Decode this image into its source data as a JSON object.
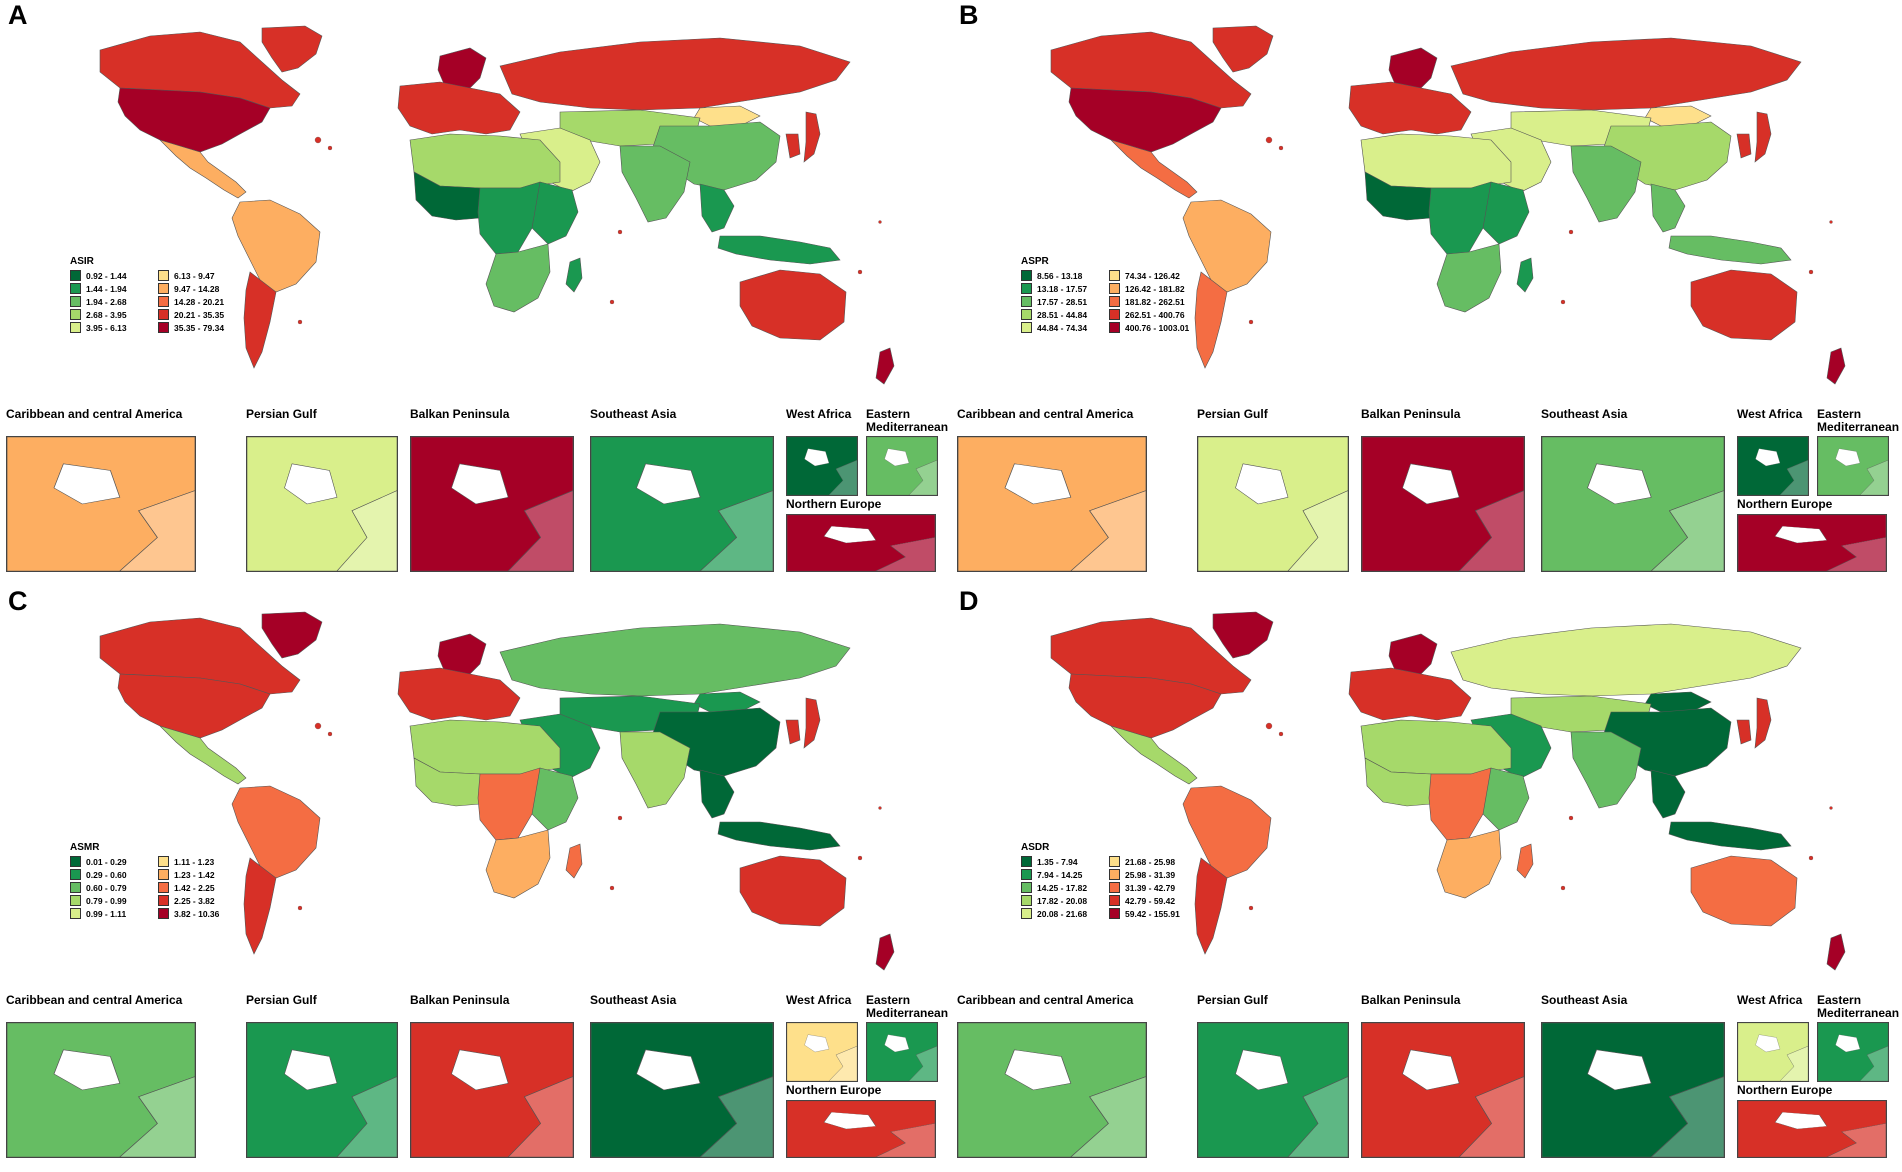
{
  "panels": [
    {
      "letter": "A",
      "legend_title": "ASIR",
      "legend": [
        "0.92 - 1.44",
        "1.44 - 1.94",
        "1.94 - 2.68",
        "2.68 - 3.95",
        "3.95 - 6.13",
        "6.13 - 9.47",
        "9.47 - 14.28",
        "14.28 - 20.21",
        "20.21 - 35.35",
        "35.35 - 79.34"
      ],
      "inset_colors": {
        "caribbean": "#fdae61",
        "persian": "#d9ef8b",
        "balkan": "#a50026",
        "seasia": "#1a9850",
        "westafrica": "#006837",
        "eastmed": "#66bd63",
        "northeu": "#a50026"
      },
      "region_colors": {
        "namerica": "#a50026",
        "canada": "#d73027",
        "greenland": "#d73027",
        "camerica": "#fdae61",
        "samerica": "#fdae61",
        "southcone": "#d73027",
        "europe": "#d73027",
        "scandinavia": "#a50026",
        "russia": "#d73027",
        "mideast": "#d9ef8b",
        "nafrica": "#a6d96a",
        "wafrica": "#006837",
        "cafrica": "#1a9850",
        "eafrica": "#1a9850",
        "safrica": "#66bd63",
        "madagascar": "#1a9850",
        "centralasia": "#a6d96a",
        "southasia": "#66bd63",
        "china": "#66bd63",
        "mongolia": "#fee08b",
        "seasia": "#1a9850",
        "japan": "#d73027",
        "korea": "#d73027",
        "indonesia": "#1a9850",
        "australia": "#d73027",
        "nz": "#a50026"
      }
    },
    {
      "letter": "B",
      "legend_title": "ASPR",
      "legend": [
        "8.56 - 13.18",
        "13.18 - 17.57",
        "17.57 - 28.51",
        "28.51 - 44.84",
        "44.84 - 74.34",
        "74.34 - 126.42",
        "126.42 - 181.82",
        "181.82 - 262.51",
        "262.51 - 400.76",
        "400.76 - 1003.01"
      ],
      "inset_colors": {
        "caribbean": "#fdae61",
        "persian": "#d9ef8b",
        "balkan": "#a50026",
        "seasia": "#66bd63",
        "westafrica": "#006837",
        "eastmed": "#66bd63",
        "northeu": "#a50026"
      },
      "region_colors": {
        "namerica": "#a50026",
        "canada": "#d73027",
        "greenland": "#d73027",
        "camerica": "#f46d43",
        "samerica": "#fdae61",
        "southcone": "#f46d43",
        "europe": "#d73027",
        "scandinavia": "#a50026",
        "russia": "#d73027",
        "mideast": "#d9ef8b",
        "nafrica": "#d9ef8b",
        "wafrica": "#006837",
        "cafrica": "#1a9850",
        "eafrica": "#1a9850",
        "safrica": "#66bd63",
        "madagascar": "#1a9850",
        "centralasia": "#d9ef8b",
        "southasia": "#66bd63",
        "china": "#a6d96a",
        "mongolia": "#fee08b",
        "seasia": "#66bd63",
        "japan": "#d73027",
        "korea": "#d73027",
        "indonesia": "#66bd63",
        "australia": "#d73027",
        "nz": "#a50026"
      }
    },
    {
      "letter": "C",
      "legend_title": "ASMR",
      "legend": [
        "0.01 - 0.29",
        "0.29 - 0.60",
        "0.60 - 0.79",
        "0.79 - 0.99",
        "0.99 - 1.11",
        "1.11 - 1.23",
        "1.23 - 1.42",
        "1.42 - 2.25",
        "2.25 - 3.82",
        "3.82 - 10.36"
      ],
      "inset_colors": {
        "caribbean": "#66bd63",
        "persian": "#1a9850",
        "balkan": "#d73027",
        "seasia": "#006837",
        "westafrica": "#fee08b",
        "eastmed": "#1a9850",
        "northeu": "#d73027"
      },
      "region_colors": {
        "namerica": "#d73027",
        "canada": "#d73027",
        "greenland": "#a50026",
        "camerica": "#a6d96a",
        "samerica": "#f46d43",
        "southcone": "#d73027",
        "europe": "#d73027",
        "scandinavia": "#a50026",
        "russia": "#66bd63",
        "mideast": "#1a9850",
        "nafrica": "#a6d96a",
        "wafrica": "#a6d96a",
        "cafrica": "#f46d43",
        "eafrica": "#66bd63",
        "safrica": "#fdae61",
        "madagascar": "#f46d43",
        "centralasia": "#1a9850",
        "southasia": "#a6d96a",
        "china": "#006837",
        "mongolia": "#1a9850",
        "seasia": "#006837",
        "japan": "#d73027",
        "korea": "#d73027",
        "indonesia": "#006837",
        "australia": "#d73027",
        "nz": "#a50026"
      }
    },
    {
      "letter": "D",
      "legend_title": "ASDR",
      "legend": [
        "1.35 - 7.94",
        "7.94 - 14.25",
        "14.25 - 17.82",
        "17.82 - 20.08",
        "20.08 - 21.68",
        "21.68 - 25.98",
        "25.98 - 31.39",
        "31.39 - 42.79",
        "42.79 - 59.42",
        "59.42 - 155.91"
      ],
      "inset_colors": {
        "caribbean": "#66bd63",
        "persian": "#1a9850",
        "balkan": "#d73027",
        "seasia": "#006837",
        "westafrica": "#d9ef8b",
        "eastmed": "#1a9850",
        "northeu": "#d73027"
      },
      "region_colors": {
        "namerica": "#d73027",
        "canada": "#d73027",
        "greenland": "#a50026",
        "camerica": "#a6d96a",
        "samerica": "#f46d43",
        "southcone": "#d73027",
        "europe": "#d73027",
        "scandinavia": "#a50026",
        "russia": "#d9ef8b",
        "mideast": "#1a9850",
        "nafrica": "#a6d96a",
        "wafrica": "#a6d96a",
        "cafrica": "#f46d43",
        "eafrica": "#66bd63",
        "safrica": "#fdae61",
        "madagascar": "#f46d43",
        "centralasia": "#a6d96a",
        "southasia": "#66bd63",
        "china": "#006837",
        "mongolia": "#006837",
        "seasia": "#006837",
        "japan": "#d73027",
        "korea": "#d73027",
        "indonesia": "#006837",
        "australia": "#f46d43",
        "nz": "#a50026"
      }
    }
  ],
  "insets": {
    "caribbean": "Caribbean and central America",
    "persian": "Persian Gulf",
    "balkan": "Balkan Peninsula",
    "seasia": "Southeast Asia",
    "westafrica": "West Africa",
    "eastmed": "Eastern Mediterranean",
    "northeu": "Northern Europe"
  },
  "palette": [
    "#006837",
    "#1a9850",
    "#66bd63",
    "#a6d96a",
    "#d9ef8b",
    "#fee08b",
    "#fdae61",
    "#f46d43",
    "#d73027",
    "#a50026"
  ]
}
